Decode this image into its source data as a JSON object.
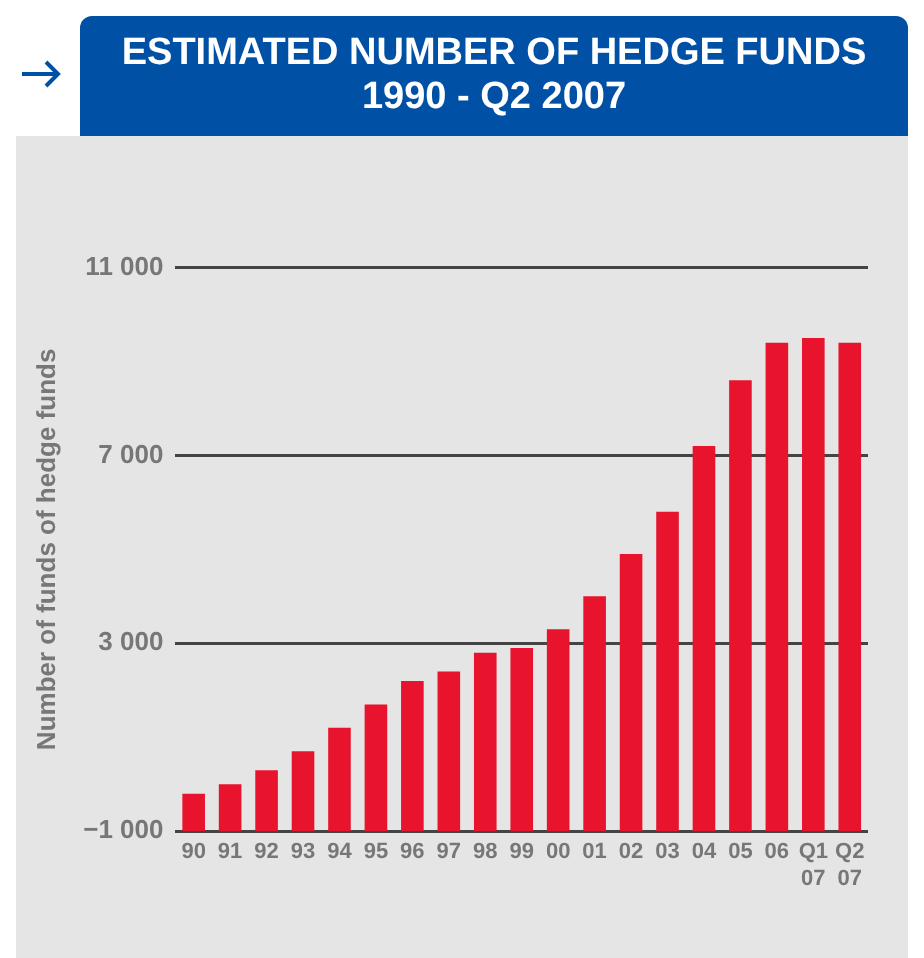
{
  "chart_data": {
    "type": "bar",
    "title": "ESTIMATED NUMBER OF HEDGE FUNDS 1990 - Q2 2007",
    "ylabel": "Number of funds of hedge funds",
    "categories": [
      "90",
      "91",
      "92",
      "93",
      "94",
      "95",
      "96",
      "97",
      "98",
      "99",
      "00",
      "01",
      "02",
      "03",
      "04",
      "05",
      "06",
      "Q1\n07",
      "Q2\n07"
    ],
    "base": [
      -1000,
      -1000,
      -1000,
      -1000,
      -1000,
      -1000,
      -1000,
      -1000,
      -1000,
      -1000,
      -1000,
      -1000,
      -1000,
      -1000,
      -1000,
      -1000,
      -1000,
      -1000,
      -1000
    ],
    "values": [
      800,
      1000,
      1300,
      1700,
      2200,
      2700,
      3200,
      3400,
      3800,
      3900,
      4300,
      5000,
      5900,
      6800,
      8200,
      9600,
      10400,
      10500,
      10400
    ],
    "color": "#e8132d",
    "ylim": [
      -1000,
      11000
    ],
    "yticks": [
      {
        "value": -1000,
        "label": "−1 000"
      },
      {
        "value": 3000,
        "label": "3 000"
      },
      {
        "value": 7000,
        "label": "7 000"
      },
      {
        "value": 11000,
        "label": "11 000"
      }
    ],
    "grid": "y",
    "legend": false
  }
}
